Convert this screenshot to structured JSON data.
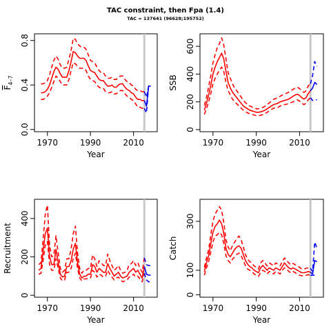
{
  "title": "TAC constraint, then Fpa (1.4)",
  "subtitle": "TAC = 137641 (96628;195752)",
  "colors": {
    "history": "#ff0000",
    "forecast": "#0000ee",
    "marker": "#c8c8c8",
    "axis": "#000000"
  },
  "chart_data": [
    {
      "type": "line",
      "xlabel": "Year",
      "ylabel": "F̅ 4–7",
      "ylabel_main": "F",
      "ylabel_sub": "4–7",
      "xlim": [
        1964,
        2021
      ],
      "ylim": [
        -0.02,
        0.86
      ],
      "xticks": [
        1970,
        1990,
        2010
      ],
      "yticks": [
        0.0,
        0.4,
        0.8
      ],
      "ytick_labels": [
        "0.0",
        "0.4",
        "0.8"
      ],
      "grid": false,
      "marker_year": 2015,
      "history": {
        "x": [
          1967,
          1968,
          1969,
          1970,
          1971,
          1972,
          1973,
          1974,
          1975,
          1976,
          1977,
          1978,
          1979,
          1980,
          1981,
          1982,
          1983,
          1984,
          1985,
          1986,
          1987,
          1988,
          1989,
          1990,
          1991,
          1992,
          1993,
          1994,
          1995,
          1996,
          1997,
          1998,
          1999,
          2000,
          2001,
          2002,
          2003,
          2004,
          2005,
          2006,
          2007,
          2008,
          2009,
          2010,
          2011,
          2012,
          2013,
          2014,
          2015
        ],
        "estimate": [
          0.33,
          0.33,
          0.34,
          0.36,
          0.4,
          0.46,
          0.52,
          0.56,
          0.54,
          0.5,
          0.47,
          0.47,
          0.47,
          0.53,
          0.61,
          0.7,
          0.69,
          0.66,
          0.64,
          0.64,
          0.64,
          0.62,
          0.57,
          0.53,
          0.52,
          0.51,
          0.48,
          0.45,
          0.44,
          0.44,
          0.41,
          0.39,
          0.39,
          0.4,
          0.38,
          0.38,
          0.4,
          0.41,
          0.41,
          0.38,
          0.36,
          0.35,
          0.33,
          0.32,
          0.29,
          0.27,
          0.27,
          0.26,
          0.26
        ],
        "lower": [
          0.27,
          0.27,
          0.28,
          0.3,
          0.33,
          0.38,
          0.43,
          0.48,
          0.46,
          0.43,
          0.4,
          0.4,
          0.4,
          0.45,
          0.53,
          0.6,
          0.59,
          0.57,
          0.55,
          0.55,
          0.55,
          0.53,
          0.48,
          0.45,
          0.44,
          0.43,
          0.4,
          0.38,
          0.37,
          0.37,
          0.34,
          0.33,
          0.33,
          0.34,
          0.32,
          0.32,
          0.34,
          0.35,
          0.35,
          0.32,
          0.3,
          0.29,
          0.27,
          0.26,
          0.23,
          0.2,
          0.2,
          0.19,
          0.19
        ],
        "upper": [
          0.41,
          0.41,
          0.42,
          0.44,
          0.49,
          0.56,
          0.62,
          0.66,
          0.63,
          0.58,
          0.55,
          0.55,
          0.56,
          0.63,
          0.71,
          0.82,
          0.81,
          0.77,
          0.75,
          0.74,
          0.74,
          0.72,
          0.67,
          0.62,
          0.61,
          0.6,
          0.56,
          0.53,
          0.51,
          0.51,
          0.48,
          0.46,
          0.46,
          0.47,
          0.45,
          0.45,
          0.47,
          0.48,
          0.48,
          0.45,
          0.43,
          0.42,
          0.4,
          0.39,
          0.36,
          0.35,
          0.35,
          0.34,
          0.34
        ]
      },
      "forecast": {
        "x": [
          2015,
          2016,
          2017,
          2018
        ],
        "estimate": [
          0.26,
          0.21,
          0.39,
          0.39
        ],
        "lower": [
          0.19,
          0.15,
          0.39,
          0.39
        ],
        "upper": [
          0.34,
          0.29,
          0.39,
          0.39
        ]
      }
    },
    {
      "type": "line",
      "xlabel": "Year",
      "ylabel": "SSB",
      "xlim": [
        1964,
        2021
      ],
      "ylim": [
        -15,
        690
      ],
      "xticks": [
        1970,
        1990,
        2010
      ],
      "yticks": [
        0,
        200,
        400,
        600
      ],
      "ytick_labels": [
        "0",
        "200",
        "400",
        "600"
      ],
      "grid": false,
      "marker_year": 2015,
      "history": {
        "x": [
          1966,
          1967,
          1968,
          1969,
          1970,
          1971,
          1972,
          1973,
          1974,
          1975,
          1976,
          1977,
          1978,
          1979,
          1980,
          1981,
          1982,
          1983,
          1984,
          1985,
          1986,
          1987,
          1988,
          1989,
          1990,
          1991,
          1992,
          1993,
          1994,
          1995,
          1996,
          1997,
          1998,
          1999,
          2000,
          2001,
          2002,
          2003,
          2004,
          2005,
          2006,
          2007,
          2008,
          2009,
          2010,
          2011,
          2012,
          2013,
          2014,
          2015
        ],
        "estimate": [
          140,
          190,
          250,
          320,
          400,
          450,
          490,
          520,
          550,
          510,
          420,
          340,
          300,
          270,
          250,
          230,
          210,
          190,
          170,
          160,
          150,
          140,
          135,
          130,
          125,
          125,
          128,
          133,
          140,
          150,
          160,
          170,
          180,
          185,
          190,
          200,
          205,
          210,
          215,
          220,
          230,
          240,
          250,
          255,
          245,
          230,
          220,
          230,
          260,
          280
        ],
        "lower": [
          110,
          150,
          200,
          260,
          330,
          370,
          400,
          430,
          450,
          420,
          340,
          280,
          250,
          220,
          200,
          185,
          170,
          155,
          140,
          130,
          120,
          115,
          110,
          105,
          100,
          100,
          103,
          108,
          115,
          125,
          135,
          145,
          155,
          158,
          160,
          170,
          175,
          180,
          183,
          188,
          195,
          200,
          210,
          215,
          205,
          190,
          180,
          190,
          215,
          230
        ],
        "upper": [
          175,
          230,
          310,
          390,
          480,
          540,
          590,
          620,
          660,
          610,
          510,
          410,
          370,
          330,
          300,
          280,
          255,
          235,
          210,
          195,
          180,
          170,
          163,
          158,
          150,
          150,
          155,
          160,
          168,
          180,
          192,
          205,
          218,
          225,
          230,
          240,
          248,
          255,
          262,
          270,
          280,
          290,
          300,
          305,
          295,
          280,
          268,
          280,
          315,
          330
        ]
      },
      "forecast": {
        "x": [
          2015,
          2016,
          2017,
          2018
        ],
        "estimate": [
          280,
          300,
          340,
          325
        ],
        "lower": [
          230,
          210,
          215,
          215
        ],
        "upper": [
          330,
          390,
          490,
          455
        ]
      }
    },
    {
      "type": "line",
      "xlabel": "Year",
      "ylabel": "Recruitment",
      "xlim": [
        1964,
        2021
      ],
      "ylim": [
        -10,
        500
      ],
      "xticks": [
        1970,
        1990,
        2010
      ],
      "yticks": [
        0,
        200,
        400
      ],
      "ytick_labels": [
        "0",
        "200",
        "400"
      ],
      "grid": false,
      "marker_year": 2015,
      "history": {
        "x": [
          1966,
          1967,
          1968,
          1969,
          1970,
          1971,
          1972,
          1973,
          1974,
          1975,
          1976,
          1977,
          1978,
          1979,
          1980,
          1981,
          1982,
          1983,
          1984,
          1985,
          1986,
          1987,
          1988,
          1989,
          1990,
          1991,
          1992,
          1993,
          1994,
          1995,
          1996,
          1997,
          1998,
          1999,
          2000,
          2001,
          2002,
          2003,
          2004,
          2005,
          2006,
          2007,
          2008,
          2009,
          2010,
          2011,
          2012,
          2013,
          2014,
          2015
        ],
        "estimate": [
          130,
          140,
          230,
          320,
          350,
          200,
          160,
          160,
          240,
          170,
          110,
          95,
          100,
          150,
          150,
          180,
          240,
          270,
          170,
          110,
          90,
          100,
          100,
          110,
          110,
          160,
          150,
          120,
          140,
          130,
          120,
          120,
          165,
          140,
          120,
          100,
          110,
          120,
          100,
          90,
          95,
          100,
          120,
          130,
          140,
          120,
          130,
          110,
          90,
          150
        ],
        "lower": [
          110,
          115,
          180,
          260,
          280,
          160,
          130,
          130,
          190,
          140,
          90,
          75,
          80,
          120,
          120,
          140,
          190,
          220,
          140,
          90,
          75,
          85,
          85,
          90,
          90,
          130,
          120,
          95,
          110,
          105,
          95,
          100,
          130,
          110,
          95,
          80,
          90,
          95,
          80,
          70,
          75,
          80,
          95,
          100,
          110,
          95,
          100,
          85,
          70,
          115
        ],
        "upper": [
          160,
          170,
          290,
          420,
          470,
          260,
          200,
          210,
          310,
          220,
          140,
          120,
          130,
          190,
          190,
          240,
          320,
          360,
          220,
          140,
          115,
          130,
          130,
          140,
          140,
          210,
          190,
          150,
          180,
          170,
          155,
          155,
          215,
          180,
          155,
          130,
          140,
          155,
          130,
          115,
          120,
          130,
          160,
          165,
          180,
          155,
          170,
          140,
          120,
          195
        ]
      },
      "forecast": {
        "x": [
          2015,
          2016,
          2017,
          2018
        ],
        "estimate": [
          150,
          110,
          105,
          105
        ],
        "lower": [
          115,
          80,
          70,
          70
        ],
        "upper": [
          195,
          160,
          155,
          155
        ]
      }
    },
    {
      "type": "line",
      "xlabel": "Year",
      "ylabel": "Catch",
      "xlim": [
        1964,
        2021
      ],
      "ylim": [
        -10,
        390
      ],
      "xticks": [
        1970,
        1990,
        2010
      ],
      "yticks": [
        0,
        100,
        300
      ],
      "ytick_labels": [
        "0",
        "100",
        "300"
      ],
      "grid": false,
      "marker_year": 2015,
      "history": {
        "x": [
          1966,
          1967,
          1968,
          1969,
          1970,
          1971,
          1972,
          1973,
          1974,
          1975,
          1976,
          1977,
          1978,
          1979,
          1980,
          1981,
          1982,
          1983,
          1984,
          1985,
          1986,
          1987,
          1988,
          1989,
          1990,
          1991,
          1992,
          1993,
          1994,
          1995,
          1996,
          1997,
          1998,
          1999,
          2000,
          2001,
          2002,
          2003,
          2004,
          2005,
          2006,
          2007,
          2008,
          2009,
          2010,
          2011,
          2012,
          2013,
          2014,
          2015
        ],
        "estimate": [
          95,
          130,
          160,
          210,
          255,
          280,
          290,
          305,
          290,
          250,
          190,
          165,
          155,
          170,
          185,
          195,
          200,
          190,
          165,
          140,
          125,
          115,
          110,
          100,
          95,
          90,
          110,
          120,
          110,
          100,
          110,
          105,
          100,
          110,
          105,
          100,
          115,
          130,
          120,
          110,
          105,
          110,
          105,
          100,
          95,
          90,
          90,
          92,
          95,
          92
        ],
        "lower": [
          80,
          110,
          135,
          175,
          215,
          240,
          245,
          255,
          245,
          210,
          160,
          140,
          130,
          145,
          155,
          165,
          170,
          160,
          140,
          120,
          105,
          100,
          95,
          85,
          80,
          75,
          90,
          100,
          95,
          85,
          95,
          90,
          85,
          95,
          90,
          85,
          100,
          110,
          105,
          95,
          90,
          95,
          90,
          85,
          80,
          78,
          78,
          80,
          82,
          80
        ],
        "upper": [
          112,
          150,
          185,
          245,
          300,
          330,
          345,
          360,
          345,
          295,
          225,
          195,
          180,
          200,
          215,
          230,
          240,
          225,
          195,
          165,
          145,
          135,
          130,
          118,
          112,
          105,
          130,
          140,
          130,
          118,
          130,
          125,
          118,
          130,
          125,
          118,
          135,
          150,
          140,
          130,
          122,
          128,
          122,
          118,
          112,
          105,
          105,
          108,
          110,
          108
        ]
      },
      "forecast": {
        "x": [
          2015,
          2016,
          2017,
          2018
        ],
        "estimate": [
          92,
          85,
          140,
          135
        ],
        "lower": [
          80,
          80,
          80,
          80
        ],
        "upper": [
          108,
          95,
          215,
          190
        ]
      }
    }
  ]
}
